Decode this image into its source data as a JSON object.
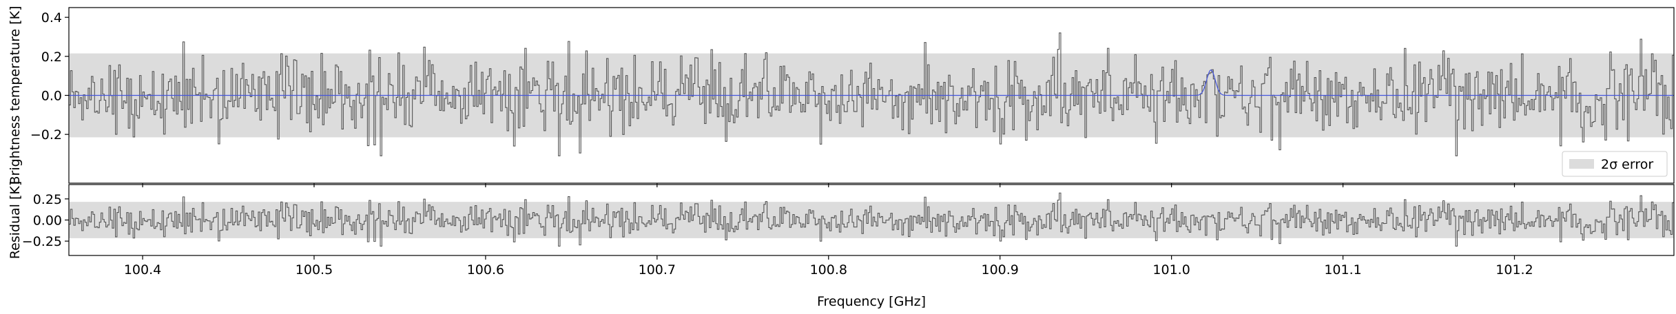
{
  "chart_data": [
    {
      "type": "line",
      "panel": "spectrum",
      "ylabel": "Brightness temperature [K]",
      "xlim": [
        100.357,
        101.293
      ],
      "ylim": [
        -0.45,
        0.45
      ],
      "y_ticks": [
        -0.2,
        0.0,
        0.2,
        0.4
      ],
      "y_tick_labels": [
        "−0.2",
        "0.0",
        "0.2",
        "0.4"
      ],
      "x_ticks": [
        100.4,
        100.5,
        100.6,
        100.7,
        100.8,
        100.9,
        101.0,
        101.1,
        101.2
      ],
      "error_band": [
        -0.215,
        0.215
      ],
      "legend": {
        "label": "2σ error",
        "placement": "lower-right"
      },
      "series": [
        {
          "style": "steps",
          "color": "#555555",
          "description": "observed spectrum, noise ~0.1 K rms"
        },
        {
          "style": "line",
          "color": "#4455dd",
          "baseline": 0.0,
          "peak_x": 101.023,
          "peak_y": 0.13,
          "peak_width_ghz": 0.0025
        }
      ],
      "grid": false
    },
    {
      "type": "line",
      "panel": "residual",
      "ylabel": "Residual [K]",
      "xlabel": "Frequency [GHz]",
      "xlim": [
        100.357,
        101.293
      ],
      "ylim": [
        -0.42,
        0.42
      ],
      "y_ticks": [
        -0.25,
        0.0,
        0.25
      ],
      "y_tick_labels": [
        "−0.25",
        "0.00",
        "0.25"
      ],
      "x_ticks": [
        100.4,
        100.5,
        100.6,
        100.7,
        100.8,
        100.9,
        101.0,
        101.1,
        101.2
      ],
      "x_tick_labels": [
        "100.4",
        "100.5",
        "100.6",
        "100.7",
        "100.8",
        "100.9",
        "101.0",
        "101.1",
        "101.2"
      ],
      "error_band": [
        -0.215,
        0.215
      ],
      "series": [
        {
          "style": "steps",
          "color": "#555555",
          "description": "residual spectrum"
        }
      ],
      "grid": false
    }
  ],
  "colors": {
    "band": "#dcdcdc",
    "spectrum": "#555555",
    "model": "#4455dd",
    "axes": "#000000"
  }
}
